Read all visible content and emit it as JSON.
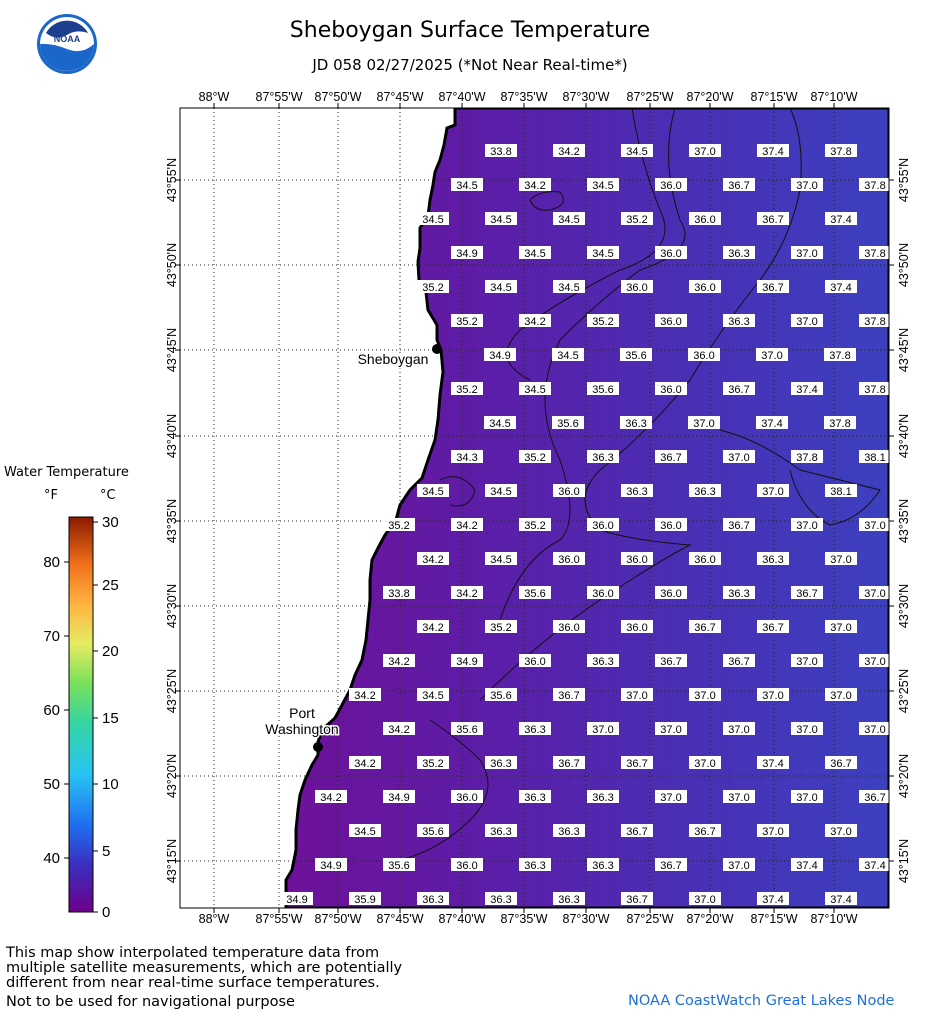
{
  "header": {
    "title": "Sheboygan Surface Temperature",
    "subtitle": "JD 058 02/27/2025 (*Not Near Real-time*)",
    "logo_text": "NOAA"
  },
  "map": {
    "lon_labels": [
      "88°W",
      "87°55'W",
      "87°50'W",
      "87°45'W",
      "87°40'W",
      "87°35'W",
      "87°30'W",
      "87°25'W",
      "87°20'W",
      "87°15'W",
      "87°10'W"
    ],
    "lat_labels": [
      "43°55'N",
      "43°50'N",
      "43°45'N",
      "43°40'N",
      "43°35'N",
      "43°30'N",
      "43°25'N",
      "43°20'N",
      "43°15'N"
    ],
    "cities": [
      {
        "name": "Sheboygan",
        "lines": [
          "Sheboygan"
        ]
      },
      {
        "name": "Port Washington",
        "lines": [
          "Port",
          "Washington"
        ]
      }
    ],
    "colors": {
      "water_west": "#6b149a",
      "water_mid": "#5a24ae",
      "water_east": "#3f3cbc",
      "land": "#ffffff",
      "shore": "#000000"
    },
    "temperature_rows": [
      [
        "33.8",
        "34.2",
        "34.5",
        "37.0",
        "37.4",
        "37.8"
      ],
      [
        "34.5",
        "34.2",
        "34.5",
        "36.0",
        "36.7",
        "37.0",
        "37.8"
      ],
      [
        "34.5",
        "34.5",
        "34.5",
        "35.2",
        "36.0",
        "36.7",
        "37.4"
      ],
      [
        "34.9",
        "34.5",
        "34.5",
        "36.0",
        "36.3",
        "37.0",
        "37.8"
      ],
      [
        "35.2",
        "34.5",
        "34.5",
        "36.0",
        "36.0",
        "36.7",
        "37.4"
      ],
      [
        "35.2",
        "34.2",
        "35.2",
        "36.0",
        "36.3",
        "37.0",
        "37.8"
      ],
      [
        "34.9",
        "34.5",
        "35.6",
        "36.0",
        "37.0",
        "37.8"
      ],
      [
        "35.2",
        "34.5",
        "35.6",
        "36.0",
        "36.7",
        "37.4",
        "37.8"
      ],
      [
        "34.5",
        "35.6",
        "36.3",
        "37.0",
        "37.4",
        "37.8"
      ],
      [
        "34.3",
        "35.2",
        "36.3",
        "36.7",
        "37.0",
        "37.8",
        "38.1"
      ],
      [
        "34.5",
        "34.5",
        "36.0",
        "36.3",
        "36.3",
        "37.0",
        "38.1"
      ],
      [
        "35.2",
        "34.2",
        "35.2",
        "36.0",
        "36.0",
        "36.7",
        "37.0",
        "37.0"
      ],
      [
        "34.2",
        "34.5",
        "36.0",
        "36.0",
        "36.0",
        "36.3",
        "37.0"
      ],
      [
        "33.8",
        "34.2",
        "35.6",
        "36.0",
        "36.0",
        "36.3",
        "36.7",
        "37.0"
      ],
      [
        "34.2",
        "35.2",
        "36.0",
        "36.0",
        "36.7",
        "36.7",
        "37.0"
      ],
      [
        "34.2",
        "34.9",
        "36.0",
        "36.3",
        "36.7",
        "36.7",
        "37.0",
        "37.0"
      ],
      [
        "34.2",
        "34.5",
        "35.6",
        "36.7",
        "37.0",
        "37.0",
        "37.0",
        "37.0"
      ],
      [
        "34.2",
        "35.6",
        "36.3",
        "37.0",
        "37.0",
        "37.0",
        "37.0",
        "37.0"
      ],
      [
        "34.2",
        "35.2",
        "36.3",
        "36.7",
        "36.7",
        "37.0",
        "37.4",
        "36.7"
      ],
      [
        "34.2",
        "34.9",
        "36.0",
        "36.3",
        "36.3",
        "37.0",
        "37.0",
        "37.0",
        "36.7"
      ],
      [
        "34.5",
        "35.6",
        "36.3",
        "36.3",
        "36.7",
        "36.7",
        "37.0",
        "37.0"
      ],
      [
        "34.9",
        "35.6",
        "36.0",
        "36.3",
        "36.3",
        "36.7",
        "37.0",
        "37.4",
        "37.4"
      ],
      [
        "34.9",
        "35.9",
        "36.3",
        "36.3",
        "36.3",
        "36.7",
        "37.0",
        "37.4",
        "37.4"
      ]
    ]
  },
  "legend": {
    "title": "Water Temperature",
    "unit_f": "°F",
    "unit_c": "°C",
    "f_ticks": [
      "80",
      "70",
      "60",
      "50",
      "40"
    ],
    "c_ticks": [
      "30",
      "25",
      "20",
      "15",
      "10",
      "5",
      "0"
    ]
  },
  "footer": {
    "note": "This map show interpolated temperature data from\nmultiple satellite measurements, which are potentially\ndifferent from near real-time surface temperatures.",
    "nav_note": "Not to be used for navigational purpose",
    "credit": "NOAA CoastWatch Great Lakes Node"
  }
}
